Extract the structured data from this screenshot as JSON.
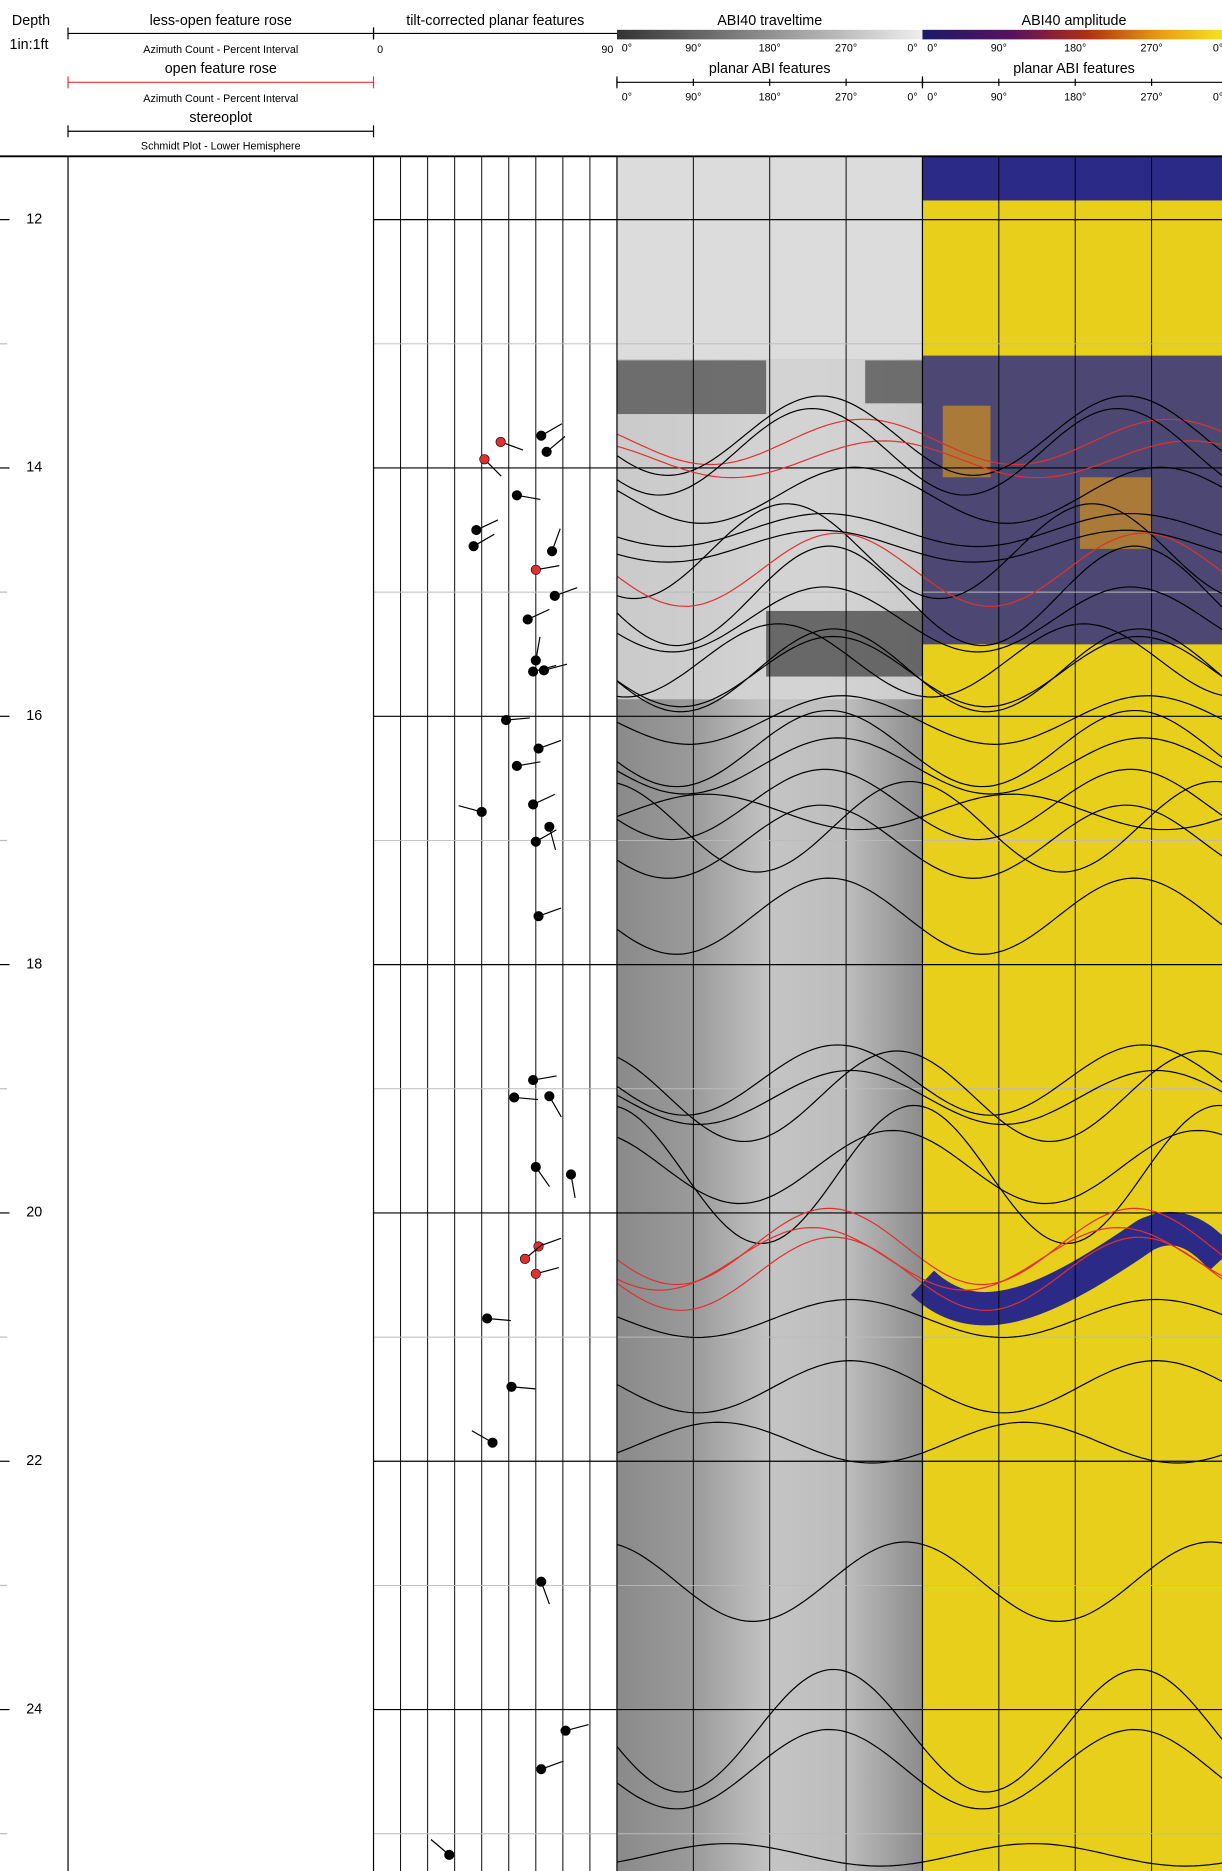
{
  "header": {
    "depth_label": "Depth",
    "scale": "1in:1ft",
    "rose_less_open": {
      "title": "less-open feature rose",
      "subtitle": "Azimuth Count - Percent Interval"
    },
    "rose_open": {
      "title": "open feature rose",
      "subtitle": "Azimuth Count - Percent Interval"
    },
    "stereoplot": {
      "title": "stereoplot",
      "subtitle": "Schmidt Plot - Lower Hemisphere"
    },
    "tadpole": {
      "title": "tilt-corrected planar features",
      "dip_range": [
        0,
        90
      ]
    },
    "traveltime": {
      "title": "ABI40 traveltime",
      "azimuth_ticks": [
        {
          "value": 0,
          "label": "0°"
        },
        {
          "value": 90,
          "label": "90°"
        },
        {
          "value": 180,
          "label": "180°"
        },
        {
          "value": 270,
          "label": "270°"
        },
        {
          "value": 360,
          "label": "0°"
        }
      ],
      "features_title": "planar ABI features",
      "features_ticks": [
        {
          "value": 0,
          "label": "0°"
        },
        {
          "value": 90,
          "label": "90°"
        },
        {
          "value": 180,
          "label": "180°"
        },
        {
          "value": 270,
          "label": "270°"
        },
        {
          "value": 360,
          "label": "0°"
        }
      ]
    },
    "amplitude": {
      "title": "ABI40 amplitude",
      "azimuth_ticks": [
        {
          "value": 0,
          "label": "0°"
        },
        {
          "value": 90,
          "label": "90°"
        },
        {
          "value": 180,
          "label": "180°"
        },
        {
          "value": 270,
          "label": "270°"
        },
        {
          "value": 360,
          "label": "0°"
        }
      ],
      "features_title": "planar ABI features",
      "features_ticks": [
        {
          "value": 0,
          "label": "0°"
        },
        {
          "value": 90,
          "label": "90°"
        },
        {
          "value": 180,
          "label": "180°"
        },
        {
          "value": 270,
          "label": "270°"
        },
        {
          "value": 360,
          "label": "0°"
        }
      ]
    }
  },
  "depth_axis": {
    "range": [
      11.49,
      25.3
    ],
    "ticks": [
      12,
      14,
      16,
      18,
      20,
      22,
      24
    ],
    "minor": [
      13,
      15,
      17,
      19,
      21,
      23,
      25
    ]
  },
  "features": [
    {
      "depth": 13.79,
      "dip": 47,
      "azimuth": 110,
      "open": true
    },
    {
      "depth": 13.74,
      "dip": 62,
      "azimuth": 60,
      "open": false
    },
    {
      "depth": 13.93,
      "dip": 41,
      "azimuth": 135,
      "open": true
    },
    {
      "depth": 13.87,
      "dip": 64,
      "azimuth": 50,
      "open": false
    },
    {
      "depth": 14.22,
      "dip": 53,
      "azimuth": 100,
      "open": false
    },
    {
      "depth": 14.5,
      "dip": 38,
      "azimuth": 65,
      "open": false
    },
    {
      "depth": 14.63,
      "dip": 37,
      "azimuth": 60,
      "open": false
    },
    {
      "depth": 14.67,
      "dip": 66,
      "azimuth": 20,
      "open": false
    },
    {
      "depth": 14.82,
      "dip": 60,
      "azimuth": 80,
      "open": true
    },
    {
      "depth": 15.03,
      "dip": 67,
      "azimuth": 70,
      "open": false
    },
    {
      "depth": 15.22,
      "dip": 57,
      "azimuth": 65,
      "open": false
    },
    {
      "depth": 15.55,
      "dip": 60,
      "azimuth": 10,
      "open": false
    },
    {
      "depth": 15.64,
      "dip": 59,
      "azimuth": 75,
      "open": false
    },
    {
      "depth": 15.63,
      "dip": 63,
      "azimuth": 75,
      "open": false
    },
    {
      "depth": 16.03,
      "dip": 49,
      "azimuth": 85,
      "open": false
    },
    {
      "depth": 16.26,
      "dip": 61,
      "azimuth": 70,
      "open": false
    },
    {
      "depth": 16.4,
      "dip": 53,
      "azimuth": 80,
      "open": false
    },
    {
      "depth": 16.71,
      "dip": 59,
      "azimuth": 65,
      "open": false
    },
    {
      "depth": 16.77,
      "dip": 40,
      "azimuth": 285,
      "open": false
    },
    {
      "depth": 16.89,
      "dip": 65,
      "azimuth": 165,
      "open": false
    },
    {
      "depth": 17.01,
      "dip": 60,
      "azimuth": 60,
      "open": false
    },
    {
      "depth": 17.61,
      "dip": 61,
      "azimuth": 70,
      "open": false
    },
    {
      "depth": 18.93,
      "dip": 59,
      "azimuth": 80,
      "open": false
    },
    {
      "depth": 19.07,
      "dip": 52,
      "azimuth": 95,
      "open": false
    },
    {
      "depth": 19.06,
      "dip": 65,
      "azimuth": 150,
      "open": false
    },
    {
      "depth": 19.63,
      "dip": 60,
      "azimuth": 145,
      "open": false
    },
    {
      "depth": 19.69,
      "dip": 73,
      "azimuth": 170,
      "open": false
    },
    {
      "depth": 20.27,
      "dip": 61,
      "azimuth": 70,
      "open": true
    },
    {
      "depth": 20.37,
      "dip": 56,
      "azimuth": 50,
      "open": true
    },
    {
      "depth": 20.49,
      "dip": 60,
      "azimuth": 75,
      "open": true
    },
    {
      "depth": 20.85,
      "dip": 42,
      "azimuth": 95,
      "open": false
    },
    {
      "depth": 21.4,
      "dip": 51,
      "azimuth": 95,
      "open": false
    },
    {
      "depth": 21.85,
      "dip": 44,
      "azimuth": 300,
      "open": false
    },
    {
      "depth": 22.97,
      "dip": 62,
      "azimuth": 160,
      "open": false
    },
    {
      "depth": 24.17,
      "dip": 71,
      "azimuth": 75,
      "open": false
    },
    {
      "depth": 24.48,
      "dip": 62,
      "azimuth": 70,
      "open": false
    },
    {
      "depth": 25.17,
      "dip": 28,
      "azimuth": 310,
      "open": false
    }
  ]
}
